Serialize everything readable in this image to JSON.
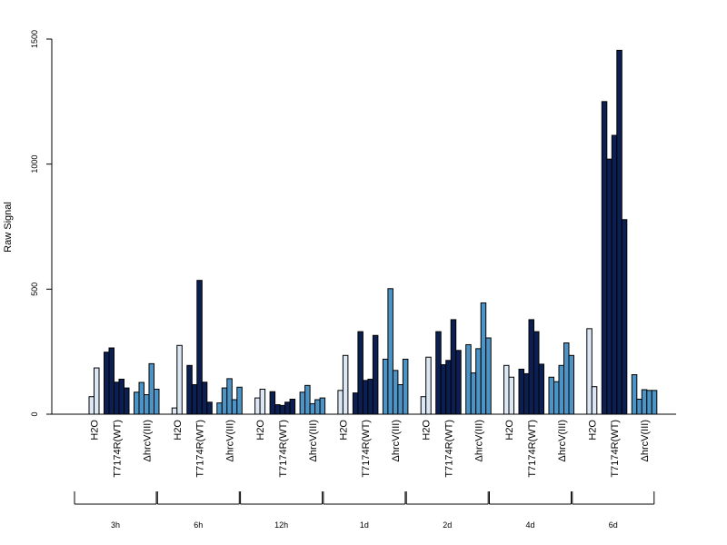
{
  "chart_data": {
    "type": "bar",
    "title": "",
    "xlabel": "",
    "ylabel": "Raw Signal",
    "ylim": [
      0,
      1500
    ],
    "yticks": [
      0,
      500,
      1000,
      1500
    ],
    "grid": false,
    "colors": {
      "H2O": "#dbe7f4",
      "T7174R(WT)": "#0b1f52",
      "ΔhrcV(III)": "#4c94c6"
    },
    "timepoints": [
      {
        "label": "3h",
        "groups": [
          {
            "name": "H2O",
            "values": [
              70,
              185
            ]
          },
          {
            "name": "T7174R(WT)",
            "values": [
              248,
              265,
              128,
              140,
              105
            ]
          },
          {
            "name": "ΔhrcV(III)",
            "values": [
              88,
              127,
              78,
              202,
              100
            ]
          }
        ]
      },
      {
        "label": "6h",
        "groups": [
          {
            "name": "H2O",
            "values": [
              25,
              275
            ]
          },
          {
            "name": "T7174R(WT)",
            "values": [
              195,
              118,
              535,
              128,
              48
            ]
          },
          {
            "name": "ΔhrcV(III)",
            "values": [
              45,
              105,
              142,
              58,
              108
            ]
          }
        ]
      },
      {
        "label": "12h",
        "groups": [
          {
            "name": "H2O",
            "values": [
              65,
              100
            ]
          },
          {
            "name": "T7174R(WT)",
            "values": [
              90,
              38,
              35,
              48,
              60
            ]
          },
          {
            "name": "ΔhrcV(III)",
            "values": [
              88,
              115,
              42,
              58,
              65
            ]
          }
        ]
      },
      {
        "label": "1d",
        "groups": [
          {
            "name": "H2O",
            "values": [
              95,
              235
            ]
          },
          {
            "name": "T7174R(WT)",
            "values": [
              85,
              330,
              135,
              140,
              315
            ]
          },
          {
            "name": "ΔhrcV(III)",
            "values": [
              220,
              502,
              175,
              118,
              220
            ]
          }
        ]
      },
      {
        "label": "2d",
        "groups": [
          {
            "name": "H2O",
            "values": [
              70,
              228
            ]
          },
          {
            "name": "T7174R(WT)",
            "values": [
              330,
              198,
              215,
              378,
              255
            ]
          },
          {
            "name": "ΔhrcV(III)",
            "values": [
              278,
              165,
              262,
              445,
              305
            ]
          }
        ]
      },
      {
        "label": "4d",
        "groups": [
          {
            "name": "H2O",
            "values": [
              195,
              148
            ]
          },
          {
            "name": "T7174R(WT)",
            "values": [
              180,
              162,
              378,
              330,
              200
            ]
          },
          {
            "name": "ΔhrcV(III)",
            "values": [
              148,
              130,
              195,
              285,
              235
            ]
          }
        ]
      },
      {
        "label": "6d",
        "groups": [
          {
            "name": "H2O",
            "values": [
              342,
              110
            ]
          },
          {
            "name": "T7174R(WT)",
            "values": [
              1250,
              1020,
              1115,
              1455,
              778
            ]
          },
          {
            "name": "ΔhrcV(III)",
            "values": [
              158,
              60,
              98,
              95,
              95
            ]
          }
        ]
      }
    ]
  }
}
